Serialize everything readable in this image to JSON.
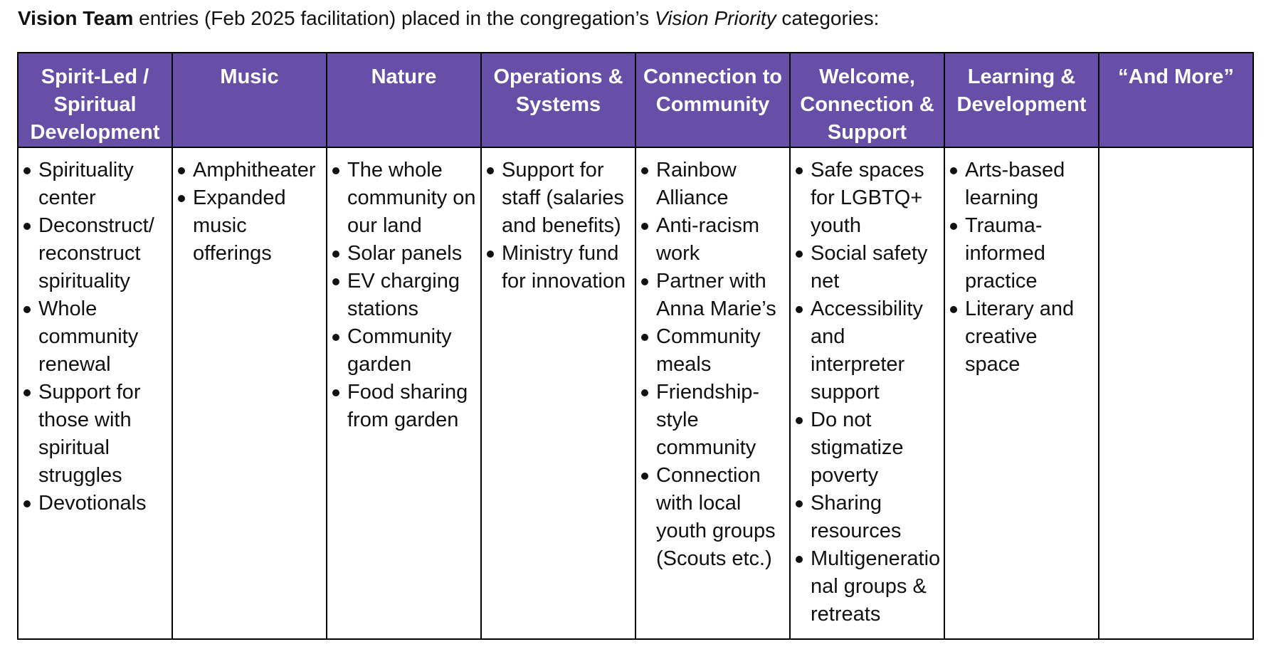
{
  "caption": {
    "bold": "Vision Team",
    "mid": " entries (Feb 2025 facilitation) placed in the congregation’s ",
    "italic": "Vision Priority",
    "end": " categories:"
  },
  "columns": [
    {
      "header": "Spirit-Led / Spiritual Development",
      "items": [
        "Spirituality center",
        "Deconstruct/ reconstruct spirituality",
        "Whole community renewal",
        "Support for those with spiritual struggles",
        "Devotionals"
      ]
    },
    {
      "header": "Music",
      "items": [
        "Amphitheater",
        "Expanded music offerings"
      ]
    },
    {
      "header": "Nature",
      "items": [
        "The whole community on our land",
        "Solar panels",
        "EV charging stations",
        "Community garden",
        "Food sharing from garden"
      ]
    },
    {
      "header": "Operations & Systems",
      "items": [
        "Support for staff (salaries and benefits)",
        "Ministry fund for innovation"
      ]
    },
    {
      "header": "Connection to Community",
      "items": [
        "Rainbow Alliance",
        "Anti-racism work",
        "Partner with Anna Marie’s",
        "Community meals",
        "Friendship-style community",
        "Connection with local youth groups (Scouts etc.)"
      ]
    },
    {
      "header": "Welcome, Connection & Support",
      "items": [
        "Safe spaces for LGBTQ+ youth",
        "Social safety net",
        "Accessibility and interpreter support",
        "Do not stigmatize poverty",
        "Sharing resources",
        "Multigenerational groups & retreats"
      ]
    },
    {
      "header": "Learning & Development",
      "items": [
        "Arts-based learning",
        "Trauma-informed practice",
        "Literary and creative space"
      ]
    },
    {
      "header": "“And More”",
      "items": []
    }
  ]
}
